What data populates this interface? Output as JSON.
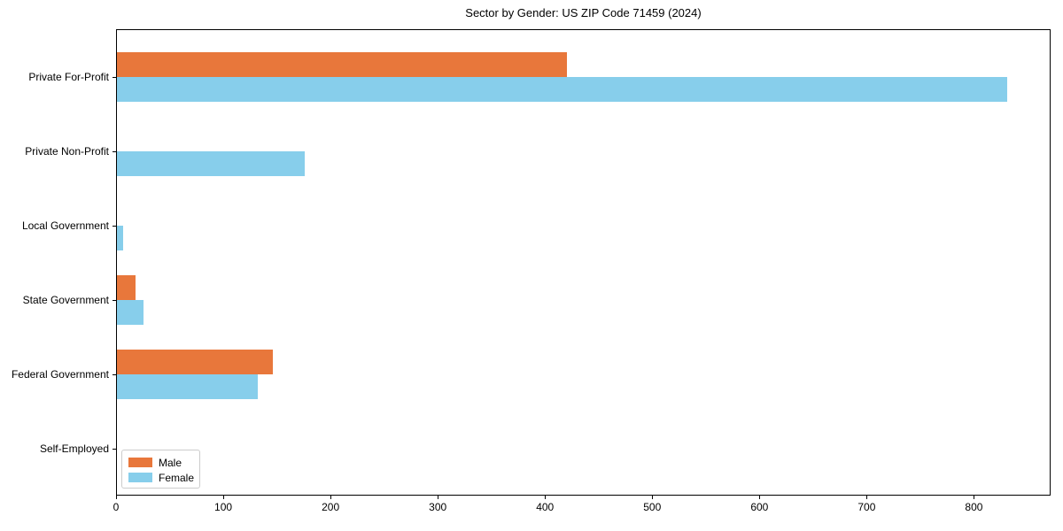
{
  "title": "Sector by Gender: US ZIP Code 71459 (2024)",
  "colors": {
    "male": "#E8773B",
    "female": "#87CEEB",
    "spine": "#000000",
    "legend_border": "#CCCCCC",
    "background": "#FFFFFF"
  },
  "legend": {
    "entries": [
      {
        "label": "Male",
        "color": "#E8773B"
      },
      {
        "label": "Female",
        "color": "#87CEEB"
      }
    ],
    "position": "lower left"
  },
  "chart_data": {
    "type": "bar",
    "orientation": "horizontal",
    "title": "Sector by Gender: US ZIP Code 71459 (2024)",
    "categories": [
      "Private For-Profit",
      "Private Non-Profit",
      "Local Government",
      "State Government",
      "Federal Government",
      "Self-Employed"
    ],
    "series": [
      {
        "name": "Male",
        "color": "#E8773B",
        "values": [
          420,
          0,
          0,
          17,
          145,
          0
        ]
      },
      {
        "name": "Female",
        "color": "#87CEEB",
        "values": [
          830,
          175,
          6,
          25,
          131,
          0
        ]
      }
    ],
    "xlabel": "",
    "ylabel": "",
    "xlim": [
      0,
      871.5
    ],
    "xticks": [
      0,
      100,
      200,
      300,
      400,
      500,
      600,
      700,
      800
    ],
    "grid": false,
    "legend_position": "lower left"
  }
}
